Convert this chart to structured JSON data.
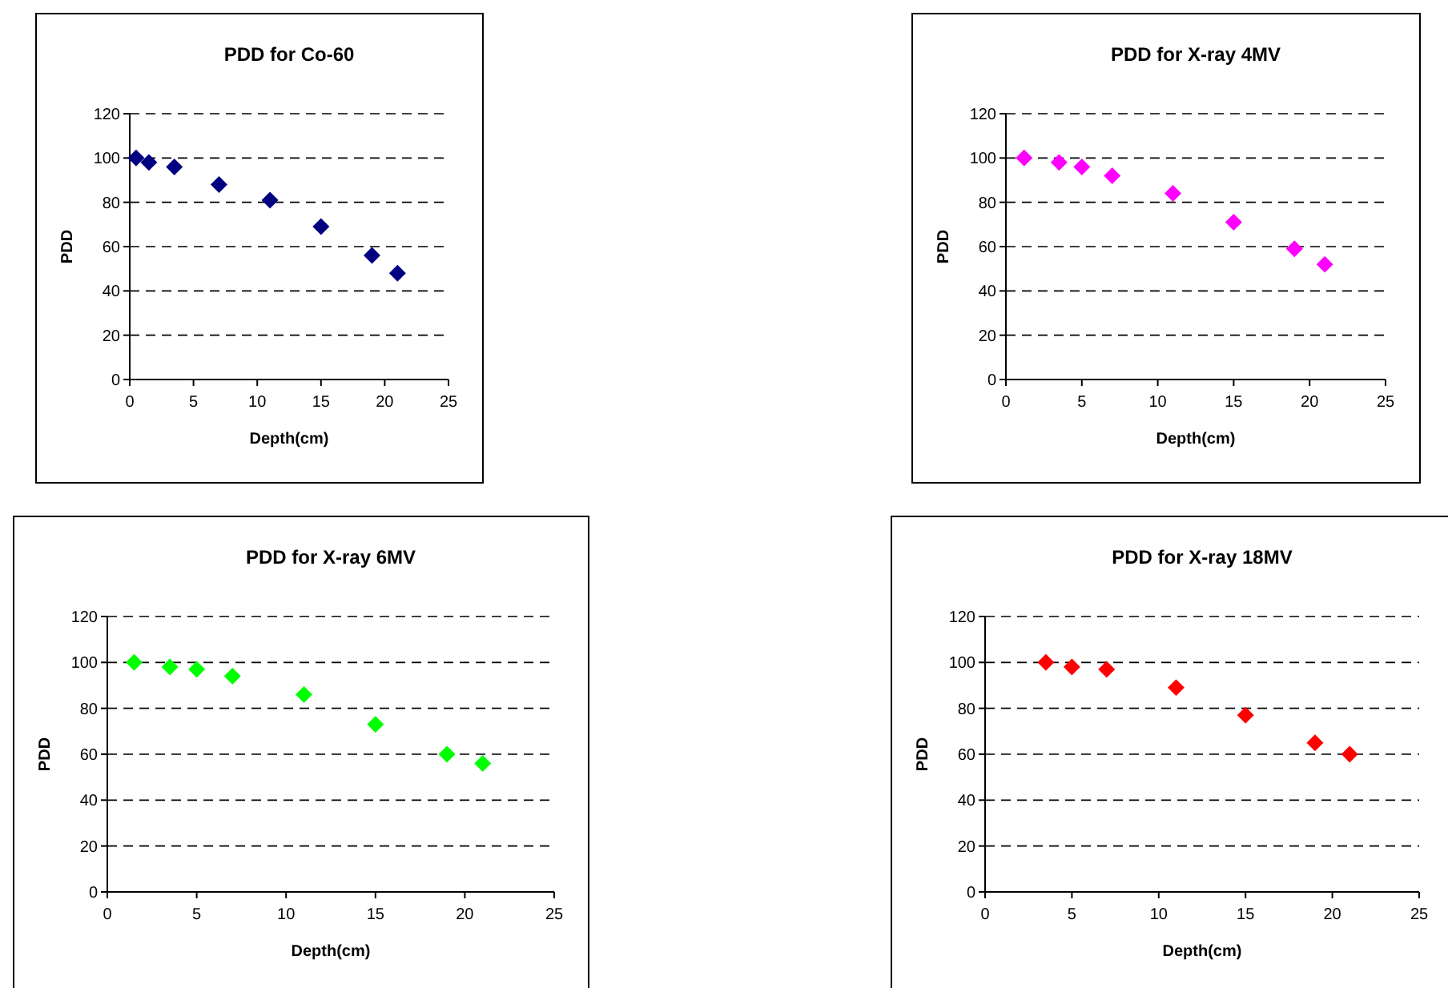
{
  "chart_data": [
    {
      "type": "scatter",
      "title": "PDD for Co-60",
      "xlabel": "Depth(cm)",
      "ylabel": "PDD",
      "x": [
        0.5,
        1.5,
        3.5,
        7,
        11,
        15,
        19,
        21
      ],
      "series": [
        {
          "color": "#000080",
          "values": [
            100,
            98,
            96,
            88,
            81,
            69,
            56,
            48
          ]
        }
      ],
      "xlim": [
        0,
        25
      ],
      "xticks": [
        0,
        5,
        10,
        15,
        20,
        25
      ],
      "ylim": [
        0,
        120
      ],
      "yticks": [
        0,
        20,
        40,
        60,
        80,
        100,
        120
      ],
      "grid": "y",
      "marker": "diamond"
    },
    {
      "type": "scatter",
      "title": "PDD for X-ray 4MV",
      "xlabel": "Depth(cm)",
      "ylabel": "PDD",
      "x": [
        1.2,
        3.5,
        5,
        7,
        11,
        15,
        19,
        21
      ],
      "series": [
        {
          "color": "#ff00ff",
          "values": [
            100,
            98,
            96,
            92,
            84,
            71,
            59,
            52
          ]
        }
      ],
      "xlim": [
        0,
        25
      ],
      "xticks": [
        0,
        5,
        10,
        15,
        20,
        25
      ],
      "ylim": [
        0,
        120
      ],
      "yticks": [
        0,
        20,
        40,
        60,
        80,
        100,
        120
      ],
      "grid": "y",
      "marker": "diamond"
    },
    {
      "type": "scatter",
      "title": "PDD for X-ray 6MV",
      "xlabel": "Depth(cm)",
      "ylabel": "PDD",
      "x": [
        1.5,
        3.5,
        5,
        7,
        11,
        15,
        19,
        21
      ],
      "series": [
        {
          "color": "#00ff00",
          "values": [
            100,
            98,
            97,
            94,
            86,
            73,
            60,
            56
          ]
        }
      ],
      "xlim": [
        0,
        25
      ],
      "xticks": [
        0,
        5,
        10,
        15,
        20,
        25
      ],
      "ylim": [
        0,
        120
      ],
      "yticks": [
        0,
        20,
        40,
        60,
        80,
        100,
        120
      ],
      "grid": "y",
      "marker": "diamond"
    },
    {
      "type": "scatter",
      "title": "PDD for X-ray 18MV",
      "xlabel": "Depth(cm)",
      "ylabel": "PDD",
      "x": [
        3.5,
        5,
        7,
        11,
        15,
        19,
        21
      ],
      "series": [
        {
          "color": "#ff0000",
          "values": [
            100,
            98,
            97,
            89,
            77,
            65,
            60
          ]
        }
      ],
      "xlim": [
        0,
        25
      ],
      "xticks": [
        0,
        5,
        10,
        15,
        20,
        25
      ],
      "ylim": [
        0,
        120
      ],
      "yticks": [
        0,
        20,
        40,
        60,
        80,
        100,
        120
      ],
      "grid": "y",
      "marker": "diamond"
    }
  ]
}
